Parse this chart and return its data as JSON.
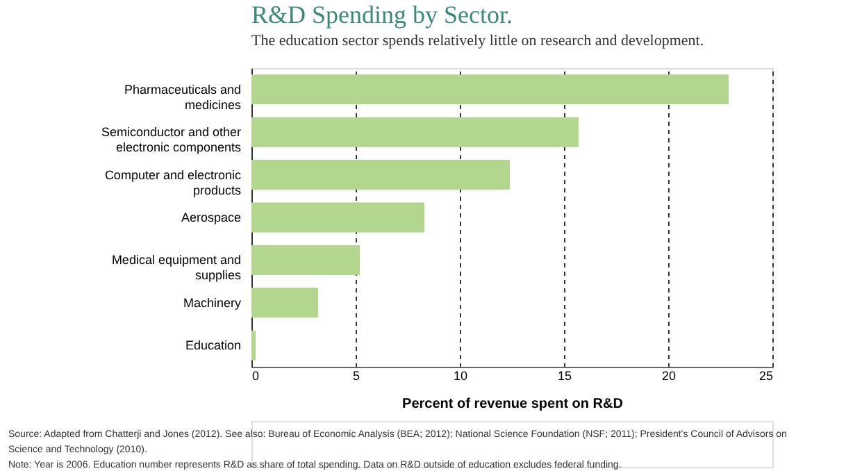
{
  "chart_data": {
    "type": "bar",
    "orientation": "horizontal",
    "title": "R&D Spending by Sector.",
    "subtitle": "The education sector spends relatively little on research and development.",
    "xlabel": "Percent of revenue spent on R&D",
    "categories": [
      "Pharmaceuticals and medicines",
      "Semiconductor and other electronic components",
      "Computer and electronic products",
      "Aerospace",
      "Medical equipment and supplies",
      "Machinery",
      "Education"
    ],
    "values": [
      22.9,
      15.7,
      12.4,
      8.3,
      5.2,
      3.2,
      0.2
    ],
    "color": "#b3d68f",
    "xlim": [
      0,
      25
    ],
    "xticks": [
      0,
      5,
      10,
      15,
      20,
      25
    ],
    "grid": "x",
    "annotations": [
      "Source: Adapted from Chatterji and Jones (2012). See also: Bureau of Economic Analysis (BEA; 2012); National Science Foundation (NSF; 2011); President’s Council of Advisors on Science and Technology (2010).",
      "Note: Year is 2006. Education number represents R&D as share of total spending. Data on R&D outside of education excludes federal funding."
    ]
  }
}
